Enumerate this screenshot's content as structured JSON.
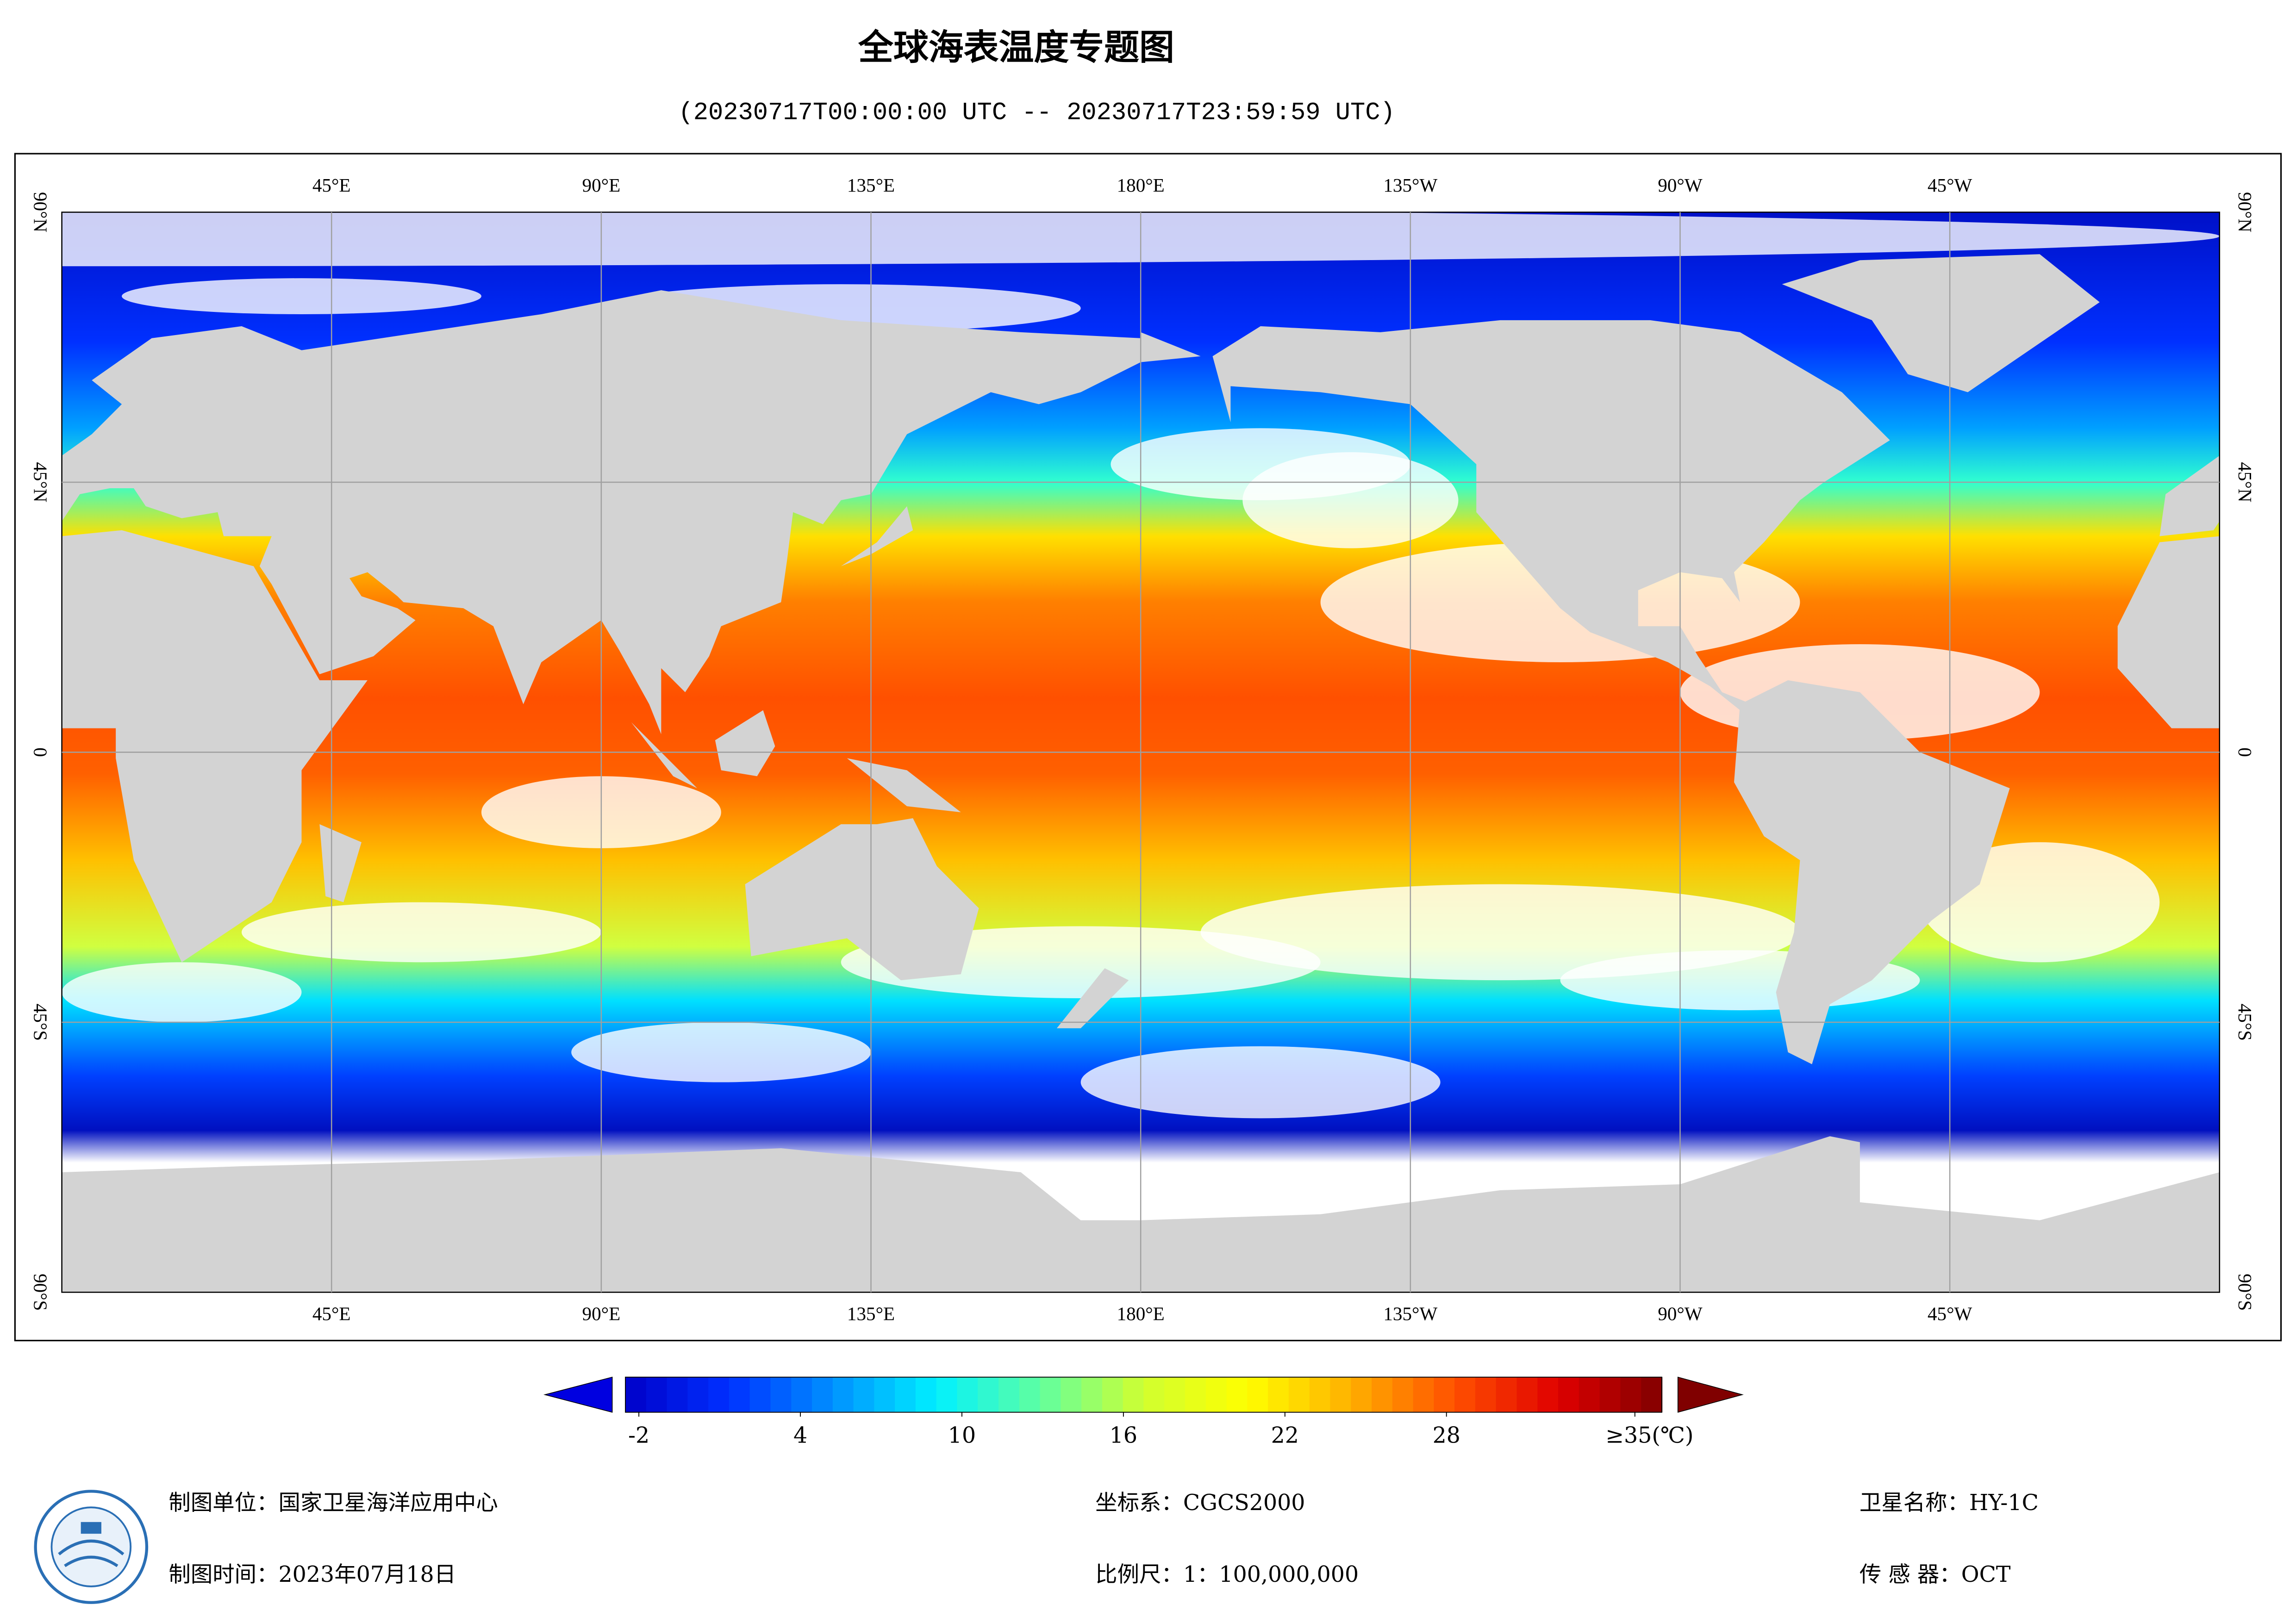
{
  "header": {
    "title": "全球海表温度专题图",
    "subtitle": "(20230717T00:00:00 UTC -- 20230717T23:59:59 UTC)"
  },
  "map": {
    "longitude_labels": [
      "45°E",
      "90°E",
      "135°E",
      "180°E",
      "135°W",
      "90°W",
      "45°W"
    ],
    "latitude_labels": [
      "90°N",
      "45°N",
      "0",
      "45°S",
      "90°S"
    ]
  },
  "colorbar": {
    "lim": [
      -2.5,
      36
    ],
    "ticks": [
      -2,
      4,
      10,
      16,
      22,
      28,
      {
        "value": 35,
        "label": "≥35(℃)"
      }
    ],
    "colors": [
      "#0000c8",
      "#0030ff",
      "#0090ff",
      "#00f0ff",
      "#60ffa0",
      "#d0ff30",
      "#ffff00",
      "#ffb000",
      "#ff5000",
      "#e00000",
      "#800000"
    ]
  },
  "footer": {
    "unit": "制图单位：国家卫星海洋应用中心",
    "date": "制图时间：2023年07月18日",
    "crs": "坐标系：CGCS2000",
    "scale": "比例尺：1：100,000,000",
    "satellite": "卫星名称：HY-1C",
    "sensor": "传 感 器：OCT"
  }
}
